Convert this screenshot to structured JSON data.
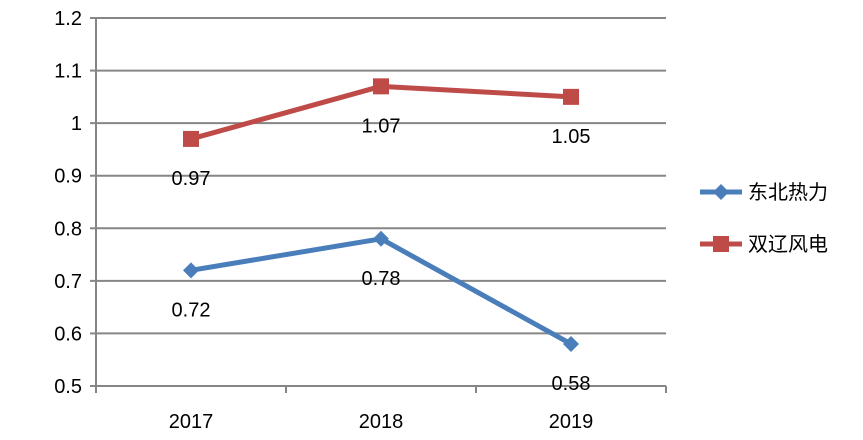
{
  "chart_data": {
    "type": "line",
    "categories": [
      "2017",
      "2018",
      "2019"
    ],
    "series": [
      {
        "name": "东北热力",
        "values": [
          0.72,
          0.78,
          0.58
        ],
        "color": "#4A7EBB",
        "marker": "diamond",
        "labels": [
          "0.72",
          "0.78",
          "0.58"
        ]
      },
      {
        "name": "双辽风电",
        "values": [
          0.97,
          1.07,
          1.05
        ],
        "color": "#BE4B48",
        "marker": "square",
        "labels": [
          "0.97",
          "1.07",
          "1.05"
        ]
      }
    ],
    "ylim": [
      0.5,
      1.2
    ],
    "yticks": [
      "0.5",
      "0.6",
      "0.7",
      "0.8",
      "0.9",
      "1",
      "1.1",
      "1.2"
    ],
    "grid": true,
    "legend": "right"
  }
}
